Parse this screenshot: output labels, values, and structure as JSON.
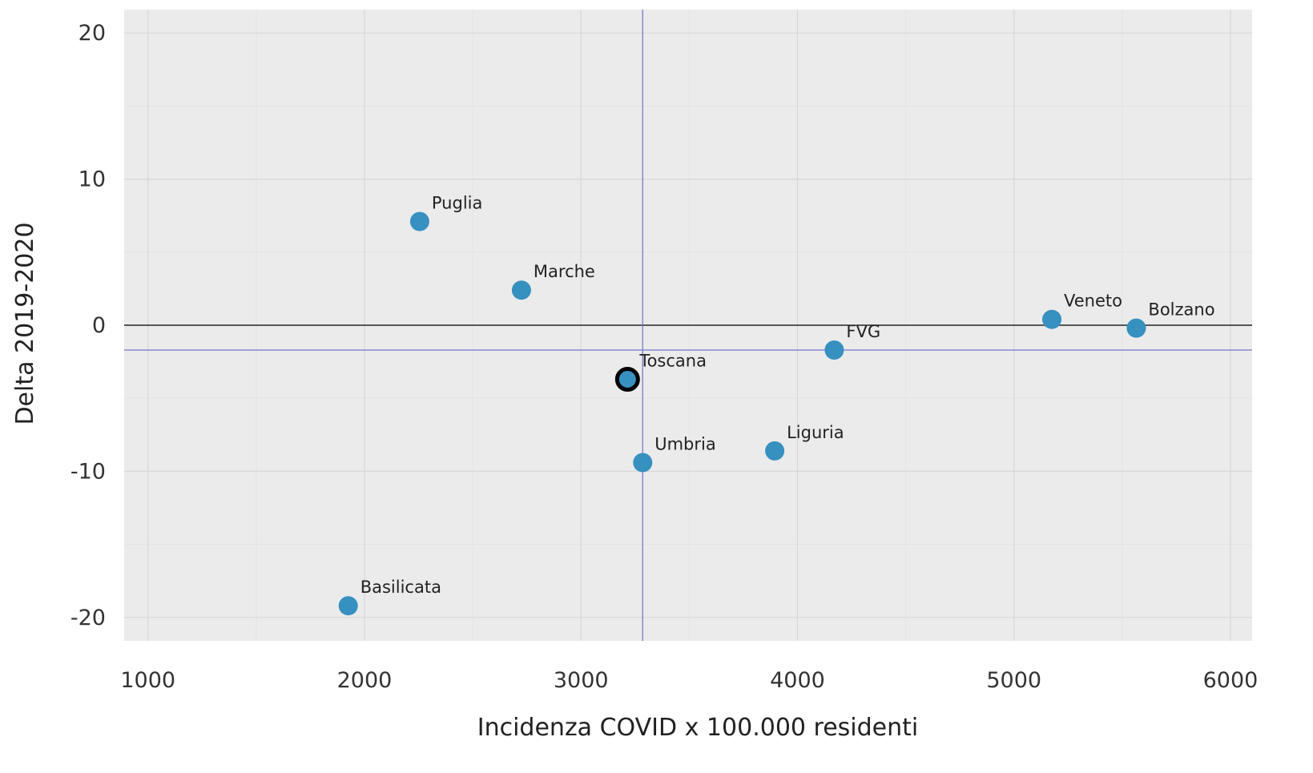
{
  "chart_data": {
    "type": "scatter",
    "title": "",
    "xlabel": "Incidenza COVID x 100.000 residenti",
    "ylabel": "Delta 2019-2020",
    "xlim": [
      890,
      6100
    ],
    "ylim": [
      -21.6,
      21.6
    ],
    "xticks": [
      1000,
      2000,
      3000,
      4000,
      5000,
      6000
    ],
    "yticks": [
      -20,
      -10,
      0,
      10,
      20
    ],
    "grid": true,
    "legend": "none",
    "colors": {
      "panel": "#ebebeb",
      "grid": "#d7d7d7",
      "point": "#3690c0",
      "zero_line": "#000000",
      "reference_line": "#7777cc",
      "highlight_ring": "#000000"
    },
    "reference_lines": {
      "vertical_x": 3285,
      "horizontal_y": -1.7
    },
    "points": [
      {
        "label": "Puglia",
        "x": 2255,
        "y": 7.1
      },
      {
        "label": "Marche",
        "x": 2725,
        "y": 2.4
      },
      {
        "label": "Veneto",
        "x": 5175,
        "y": 0.4
      },
      {
        "label": "Bolzano",
        "x": 5565,
        "y": -0.2
      },
      {
        "label": "FVG",
        "x": 4170,
        "y": -1.7
      },
      {
        "label": "Toscana",
        "x": 3215,
        "y": -3.7,
        "highlight": true
      },
      {
        "label": "Umbria",
        "x": 3285,
        "y": -9.4
      },
      {
        "label": "Liguria",
        "x": 3895,
        "y": -8.6
      },
      {
        "label": "Basilicata",
        "x": 1925,
        "y": -19.2
      }
    ]
  }
}
